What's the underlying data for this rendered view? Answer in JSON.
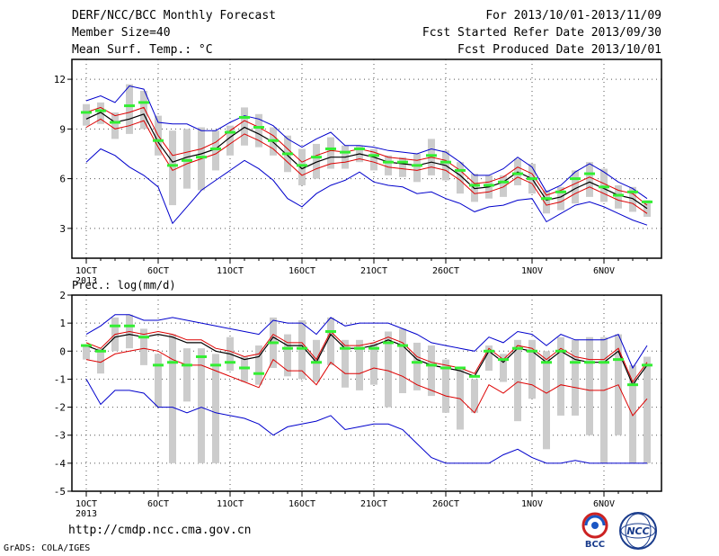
{
  "header": {
    "title": "DERF/NCC/BCC Monthly Forecast",
    "member_size": "Member Size=40",
    "variable": "Mean Surf. Temp.: °C",
    "forecast_period": "For 2013/10/01-2013/11/09",
    "start_refer": "Fcst Started Refer Date 2013/09/30",
    "produced": "Fcst Produced Date 2013/10/01"
  },
  "footer": {
    "url": "http://cmdp.ncc.cma.gov.cn",
    "credit": "GrADS: COLA/IGES",
    "logo_bcc": "BCC",
    "logo_ncc": "NCC"
  },
  "colors": {
    "ensemble_mean": "#000000",
    "inner_band": "#dd0000",
    "outer_band": "#0000cc",
    "box": "#cccccc",
    "marker": "#33ee33"
  },
  "chart_data": [
    {
      "type": "line",
      "title": "Mean Surf. Temp.: °C",
      "x": [
        "2013-10-01",
        "2013-10-02",
        "2013-10-03",
        "2013-10-04",
        "2013-10-05",
        "2013-10-06",
        "2013-10-07",
        "2013-10-08",
        "2013-10-09",
        "2013-10-10",
        "2013-10-11",
        "2013-10-12",
        "2013-10-13",
        "2013-10-14",
        "2013-10-15",
        "2013-10-16",
        "2013-10-17",
        "2013-10-18",
        "2013-10-19",
        "2013-10-20",
        "2013-10-21",
        "2013-10-22",
        "2013-10-23",
        "2013-10-24",
        "2013-10-25",
        "2013-10-26",
        "2013-10-27",
        "2013-10-28",
        "2013-10-29",
        "2013-10-30",
        "2013-10-31",
        "2013-11-01",
        "2013-11-02",
        "2013-11-03",
        "2013-11-04",
        "2013-11-05",
        "2013-11-06",
        "2013-11-07",
        "2013-11-08",
        "2013-11-09"
      ],
      "xtick_labels": [
        "1OCT\n2013",
        "6OCT",
        "11OCT",
        "16OCT",
        "21OCT",
        "26OCT",
        "1NOV",
        "6NOV"
      ],
      "xtick_index": [
        0,
        5,
        10,
        15,
        20,
        25,
        31,
        36
      ],
      "ylim": [
        1.2,
        13.2
      ],
      "yticks": [
        3,
        6,
        9,
        12
      ],
      "grid": true,
      "series": [
        {
          "values": [
            9.6,
            10.0,
            9.4,
            9.6,
            9.9,
            8.2,
            7.0,
            7.3,
            7.5,
            7.8,
            8.5,
            9.1,
            8.7,
            8.2,
            7.4,
            6.6,
            7.0,
            7.3,
            7.3,
            7.5,
            7.3,
            7.0,
            6.9,
            6.8,
            7.0,
            6.8,
            6.2,
            5.4,
            5.5,
            5.8,
            6.4,
            6.0,
            4.7,
            4.9,
            5.4,
            5.8,
            5.4,
            5.0,
            4.8,
            4.2
          ]
        },
        {
          "values": [
            10.0,
            10.3,
            9.8,
            10.0,
            10.3,
            8.6,
            7.4,
            7.6,
            7.8,
            8.2,
            8.9,
            9.5,
            9.1,
            8.6,
            7.8,
            7.0,
            7.4,
            7.7,
            7.6,
            7.8,
            7.6,
            7.3,
            7.2,
            7.1,
            7.3,
            7.1,
            6.5,
            5.7,
            5.8,
            6.1,
            6.7,
            6.3,
            5.0,
            5.3,
            5.7,
            6.1,
            5.7,
            5.3,
            5.1,
            4.4
          ]
        },
        {
          "values": [
            9.1,
            9.6,
            9.0,
            9.2,
            9.5,
            7.9,
            6.5,
            6.9,
            7.2,
            7.5,
            8.1,
            8.7,
            8.3,
            7.8,
            7.0,
            6.2,
            6.6,
            6.9,
            7.0,
            7.2,
            7.0,
            6.7,
            6.6,
            6.5,
            6.7,
            6.5,
            5.9,
            5.1,
            5.2,
            5.5,
            6.1,
            5.7,
            4.4,
            4.6,
            5.1,
            5.5,
            5.1,
            4.7,
            4.5,
            3.9
          ]
        },
        {
          "values": [
            10.7,
            11.0,
            10.6,
            11.6,
            11.4,
            9.4,
            9.3,
            9.3,
            8.9,
            8.9,
            9.4,
            9.8,
            9.6,
            9.2,
            8.4,
            7.9,
            8.4,
            8.8,
            8.0,
            8.0,
            7.9,
            7.7,
            7.6,
            7.5,
            7.8,
            7.6,
            7.0,
            6.2,
            6.2,
            6.6,
            7.3,
            6.7,
            5.2,
            5.6,
            6.4,
            6.9,
            6.4,
            5.8,
            5.4,
            4.8
          ]
        },
        {
          "values": [
            7.0,
            7.8,
            7.4,
            6.7,
            6.2,
            5.5,
            3.3,
            4.3,
            5.3,
            5.9,
            6.5,
            7.1,
            6.6,
            5.9,
            4.8,
            4.3,
            5.1,
            5.6,
            5.9,
            6.4,
            5.8,
            5.6,
            5.5,
            5.1,
            5.2,
            4.8,
            4.5,
            4.0,
            4.3,
            4.4,
            4.7,
            4.8,
            3.4,
            3.9,
            4.4,
            4.6,
            4.3,
            3.9,
            3.5,
            3.2
          ]
        }
      ],
      "box_low": [
        9.2,
        9.3,
        8.4,
        8.7,
        9.0,
        7.4,
        4.4,
        5.4,
        5.3,
        6.5,
        7.4,
        8.0,
        7.9,
        7.4,
        6.4,
        5.6,
        6.0,
        6.6,
        6.6,
        7.0,
        6.5,
        6.2,
        6.1,
        5.8,
        6.2,
        5.9,
        5.1,
        4.6,
        4.8,
        4.9,
        5.6,
        5.1,
        3.9,
        4.1,
        4.5,
        4.9,
        4.6,
        4.2,
        4.0,
        3.7
      ],
      "box_high": [
        10.5,
        10.6,
        10.0,
        11.7,
        11.3,
        9.8,
        8.9,
        9.0,
        9.1,
        8.9,
        9.2,
        10.3,
        9.9,
        9.1,
        8.6,
        7.8,
        8.1,
        8.5,
        8.0,
        8.0,
        7.8,
        7.4,
        7.3,
        7.5,
        8.4,
        7.7,
        7.0,
        6.3,
        6.2,
        6.2,
        7.2,
        6.9,
        5.3,
        5.5,
        6.5,
        7.0,
        6.6,
        5.6,
        5.5,
        4.7
      ],
      "marker": [
        10.0,
        10.1,
        9.4,
        10.4,
        10.6,
        8.3,
        6.8,
        7.1,
        7.3,
        7.8,
        8.8,
        9.7,
        9.1,
        8.3,
        7.5,
        6.8,
        7.3,
        7.8,
        7.6,
        7.8,
        7.4,
        7.0,
        7.0,
        6.8,
        7.4,
        7.0,
        6.5,
        5.6,
        5.6,
        5.8,
        6.3,
        6.0,
        4.8,
        5.2,
        6.0,
        6.3,
        5.5,
        5.0,
        5.2,
        4.6
      ]
    },
    {
      "type": "line",
      "title": "Prec.: log(mm/d)",
      "x": [
        "2013-10-01",
        "2013-10-02",
        "2013-10-03",
        "2013-10-04",
        "2013-10-05",
        "2013-10-06",
        "2013-10-07",
        "2013-10-08",
        "2013-10-09",
        "2013-10-10",
        "2013-10-11",
        "2013-10-12",
        "2013-10-13",
        "2013-10-14",
        "2013-10-15",
        "2013-10-16",
        "2013-10-17",
        "2013-10-18",
        "2013-10-19",
        "2013-10-20",
        "2013-10-21",
        "2013-10-22",
        "2013-10-23",
        "2013-10-24",
        "2013-10-25",
        "2013-10-26",
        "2013-10-27",
        "2013-10-28",
        "2013-10-29",
        "2013-10-30",
        "2013-10-31",
        "2013-11-01",
        "2013-11-02",
        "2013-11-03",
        "2013-11-04",
        "2013-11-05",
        "2013-11-06",
        "2013-11-07",
        "2013-11-08",
        "2013-11-09"
      ],
      "xtick_labels": [
        "1OCT\n2013",
        "6OCT",
        "11OCT",
        "16OCT",
        "21OCT",
        "26OCT",
        "1NOV",
        "6NOV"
      ],
      "xtick_index": [
        0,
        5,
        10,
        15,
        20,
        25,
        31,
        36
      ],
      "ylim": [
        -5,
        2
      ],
      "yticks": [
        -5,
        -4,
        -3,
        -2,
        -1,
        0,
        1,
        2
      ],
      "grid": true,
      "series": [
        {
          "values": [
            0.2,
            0.0,
            0.5,
            0.6,
            0.5,
            0.6,
            0.5,
            0.3,
            0.3,
            0.0,
            -0.1,
            -0.3,
            -0.2,
            0.5,
            0.2,
            0.2,
            -0.4,
            0.6,
            0.1,
            0.1,
            0.2,
            0.4,
            0.2,
            -0.3,
            -0.5,
            -0.6,
            -0.7,
            -0.9,
            0.0,
            -0.4,
            0.1,
            0.0,
            -0.4,
            0.0,
            -0.3,
            -0.4,
            -0.4,
            0.0,
            -1.2,
            -0.5
          ]
        },
        {
          "values": [
            0.3,
            0.1,
            0.6,
            0.7,
            0.6,
            0.7,
            0.6,
            0.4,
            0.4,
            0.1,
            0.0,
            -0.2,
            -0.1,
            0.6,
            0.3,
            0.3,
            -0.3,
            0.7,
            0.2,
            0.2,
            0.3,
            0.5,
            0.3,
            -0.2,
            -0.4,
            -0.5,
            -0.6,
            -0.8,
            0.1,
            -0.3,
            0.2,
            0.1,
            -0.3,
            0.1,
            -0.2,
            -0.3,
            -0.3,
            0.1,
            -1.1,
            -0.4
          ]
        },
        {
          "values": [
            -0.3,
            -0.4,
            -0.1,
            0.0,
            0.1,
            0.0,
            -0.3,
            -0.5,
            -0.5,
            -0.7,
            -0.9,
            -1.1,
            -1.3,
            -0.3,
            -0.7,
            -0.7,
            -1.2,
            -0.4,
            -0.8,
            -0.8,
            -0.6,
            -0.7,
            -0.9,
            -1.2,
            -1.4,
            -1.6,
            -1.7,
            -2.2,
            -1.2,
            -1.5,
            -1.1,
            -1.2,
            -1.5,
            -1.2,
            -1.3,
            -1.4,
            -1.4,
            -1.2,
            -2.3,
            -1.7
          ]
        },
        {
          "values": [
            0.6,
            0.9,
            1.3,
            1.3,
            1.1,
            1.1,
            1.2,
            1.1,
            1.0,
            0.9,
            0.8,
            0.7,
            0.6,
            1.1,
            1.0,
            1.0,
            0.6,
            1.2,
            0.9,
            1.0,
            1.0,
            1.0,
            0.8,
            0.6,
            0.3,
            0.2,
            0.1,
            0.0,
            0.5,
            0.3,
            0.7,
            0.6,
            0.2,
            0.6,
            0.4,
            0.4,
            0.4,
            0.6,
            -0.6,
            0.2
          ]
        },
        {
          "values": [
            -1.0,
            -1.9,
            -1.4,
            -1.4,
            -1.5,
            -2.0,
            -2.0,
            -2.2,
            -2.0,
            -2.2,
            -2.3,
            -2.4,
            -2.6,
            -3.0,
            -2.7,
            -2.6,
            -2.5,
            -2.3,
            -2.8,
            -2.7,
            -2.6,
            -2.6,
            -2.8,
            -3.3,
            -3.8,
            -4.0,
            -4.0,
            -4.0,
            -4.0,
            -3.7,
            -3.5,
            -3.8,
            -4.0,
            -4.0,
            -3.9,
            -4.0,
            -4.0,
            -4.0,
            -4.0,
            -4.0
          ]
        }
      ],
      "box_low": [
        -0.3,
        -0.8,
        0.0,
        0.1,
        -0.5,
        -2.0,
        -4.0,
        -1.8,
        -4.0,
        -4.0,
        -0.7,
        -1.1,
        -1.2,
        -0.6,
        -0.9,
        -1.0,
        -1.1,
        -0.5,
        -1.3,
        -1.4,
        -1.2,
        -2.0,
        -1.5,
        -1.4,
        -1.6,
        -2.2,
        -2.8,
        -2.2,
        -0.7,
        -1.1,
        -2.5,
        -1.7,
        -3.5,
        -2.3,
        -2.3,
        -3.0,
        -4.0,
        -3.0,
        -4.0,
        -4.0
      ],
      "box_high": [
        0.2,
        0.1,
        1.2,
        1.3,
        0.8,
        -0.1,
        0.6,
        0.1,
        0.1,
        -0.1,
        0.5,
        -0.2,
        0.2,
        1.2,
        0.6,
        1.1,
        0.4,
        1.2,
        0.4,
        0.4,
        0.3,
        0.7,
        0.8,
        0.3,
        0.2,
        -0.3,
        -0.6,
        -1.0,
        0.2,
        -0.1,
        0.4,
        0.4,
        0.0,
        0.5,
        0.4,
        0.5,
        0.5,
        0.6,
        -0.5,
        -0.2
      ],
      "marker": [
        0.2,
        0.0,
        0.9,
        0.9,
        0.5,
        -0.5,
        -0.4,
        -0.5,
        -0.2,
        -0.5,
        -0.4,
        -0.6,
        -0.8,
        0.3,
        0.1,
        0.1,
        -0.4,
        0.7,
        0.1,
        0.1,
        0.1,
        0.3,
        0.2,
        -0.4,
        -0.5,
        -0.6,
        -0.6,
        -0.9,
        0.0,
        -0.3,
        0.1,
        0.0,
        -0.4,
        0.0,
        -0.4,
        -0.4,
        -0.4,
        -0.3,
        -1.2,
        -0.5
      ]
    }
  ]
}
